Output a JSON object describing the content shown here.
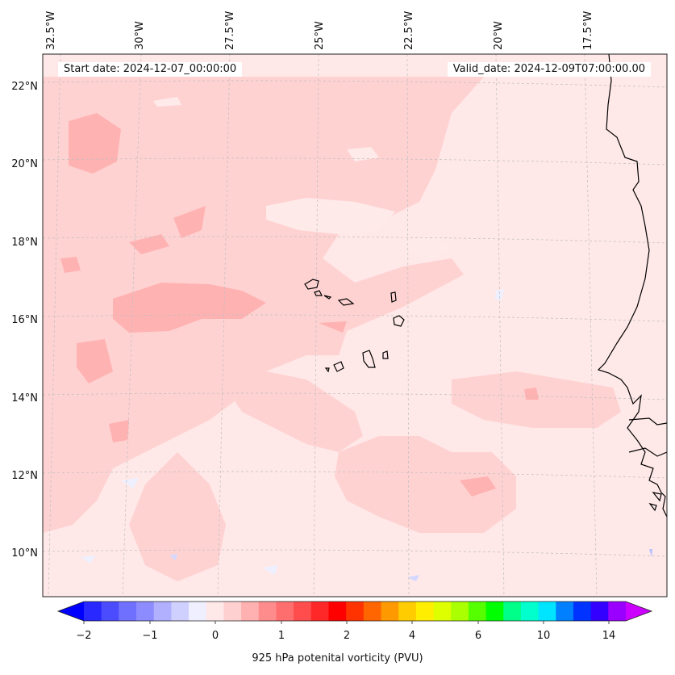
{
  "header": {
    "start_date": "Start date: 2024-12-07_00:00:00",
    "valid_date": "Valid_date: 2024-12-09T07:00:00.00"
  },
  "map": {
    "longitude_labels": [
      "32.5°W",
      "30°W",
      "27.5°W",
      "25°W",
      "22.5°W",
      "20°W",
      "17.5°W"
    ],
    "latitude_labels": [
      "22°N",
      "20°N",
      "18°N",
      "16°N",
      "14°N",
      "12°N",
      "10°N"
    ],
    "gridlines": "dashed light grey",
    "coastline_color": "#000000"
  },
  "colorbar": {
    "label": "925 hPa potenital vorticity (PVU)",
    "tick_labels": [
      "−2",
      "−1",
      "0",
      "1",
      "2",
      "4",
      "6",
      "10",
      "14"
    ],
    "extend": "both",
    "colors": [
      "#0000ff",
      "#2828ff",
      "#4c4cff",
      "#7070ff",
      "#8c8cff",
      "#b0b0ff",
      "#d0d0ff",
      "#efefff",
      "#ffe8e8",
      "#ffd0d0",
      "#ffb0b0",
      "#ff8c8c",
      "#ff6e6e",
      "#ff4c4c",
      "#ff2828",
      "#ff0000",
      "#ff3300",
      "#ff6600",
      "#ff9900",
      "#ffcc00",
      "#ffee00",
      "#ddff00",
      "#aaff00",
      "#55ff00",
      "#00ff00",
      "#00ff88",
      "#00ffcc",
      "#00e5ff",
      "#0080ff",
      "#0033ff",
      "#3300ff",
      "#9900ff",
      "#cc00ff"
    ]
  }
}
